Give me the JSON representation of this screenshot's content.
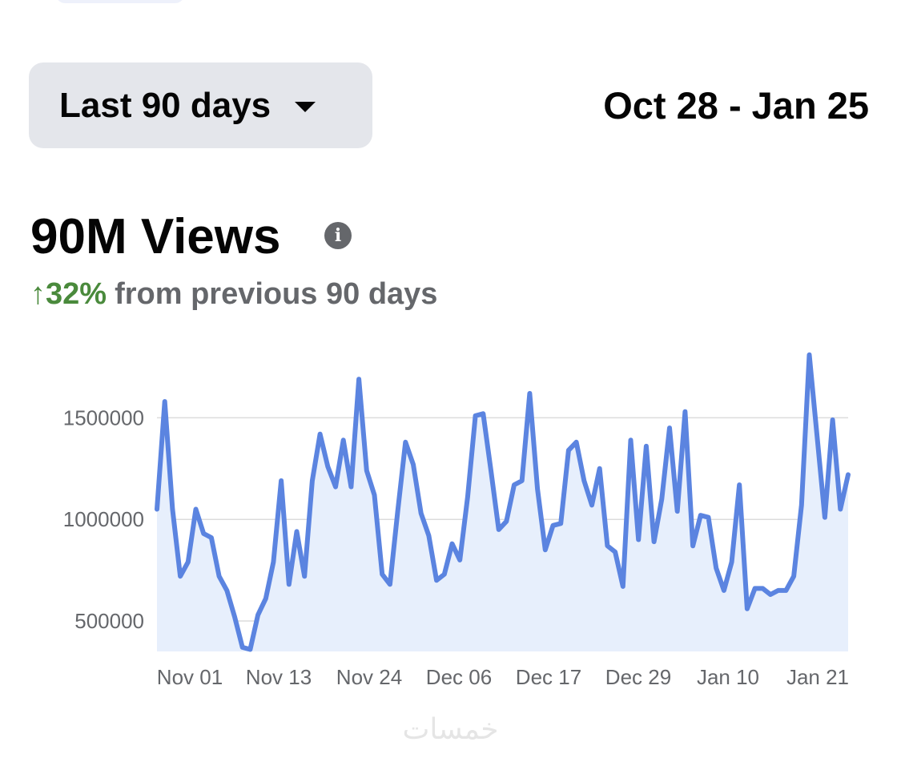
{
  "header": {
    "range_label": "Last 90 days",
    "date_range": "Oct 28 - Jan 25"
  },
  "summary": {
    "views": "90M Views",
    "change_arrow": "↑",
    "change_value": "32%",
    "change_text": "from previous 90 days"
  },
  "icons": {
    "info": "info-icon",
    "dropdown": "caret-down-icon"
  },
  "watermark": "خمسات",
  "colors": {
    "line": "#5b84e0",
    "fill": "#e7effc",
    "positive": "#4a8a3c",
    "muted": "#65676b",
    "grid": "#dcdcdc"
  },
  "chart_data": {
    "type": "area",
    "ylim": [
      350000,
      1900000
    ],
    "y_ticks": [
      500000,
      1000000,
      1500000
    ],
    "y_tick_labels": [
      "1500000",
      "1000000",
      "500000"
    ],
    "x_tick_labels": [
      "Nov 01",
      "Nov 13",
      "Nov 24",
      "Dec 06",
      "Dec 17",
      "Dec 29",
      "Jan 10",
      "Jan 21"
    ],
    "x_tick_indices": [
      5,
      17,
      28,
      40,
      51,
      63,
      75,
      86
    ],
    "values": [
      1050000,
      1580000,
      1050000,
      720000,
      790000,
      1050000,
      930000,
      910000,
      720000,
      650000,
      520000,
      370000,
      360000,
      530000,
      610000,
      790000,
      1190000,
      680000,
      940000,
      720000,
      1190000,
      1420000,
      1260000,
      1160000,
      1390000,
      1160000,
      1690000,
      1240000,
      1120000,
      730000,
      680000,
      1040000,
      1380000,
      1270000,
      1030000,
      920000,
      700000,
      730000,
      880000,
      800000,
      1110000,
      1510000,
      1520000,
      1240000,
      950000,
      990000,
      1170000,
      1190000,
      1620000,
      1150000,
      850000,
      970000,
      980000,
      1340000,
      1380000,
      1190000,
      1070000,
      1250000,
      870000,
      840000,
      670000,
      1390000,
      900000,
      1360000,
      890000,
      1100000,
      1450000,
      1040000,
      1530000,
      870000,
      1020000,
      1010000,
      760000,
      650000,
      790000,
      1170000,
      560000,
      660000,
      660000,
      630000,
      650000,
      650000,
      720000,
      1070000,
      1810000,
      1410000,
      1010000,
      1490000,
      1050000,
      1220000
    ]
  }
}
